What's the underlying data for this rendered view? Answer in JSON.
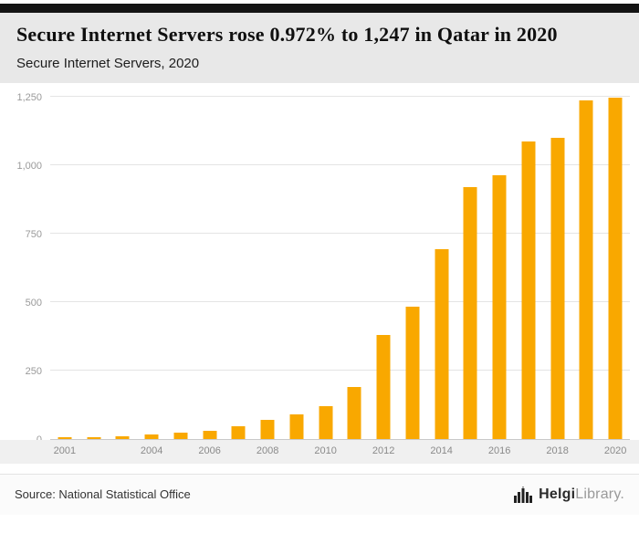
{
  "header": {
    "title": "Secure Internet Servers rose 0.972% to 1,247 in Qatar in 2020",
    "subtitle": "Secure Internet Servers, 2020"
  },
  "footer": {
    "source": "Source: National Statistical Office",
    "logo": {
      "brand_bold": "Helgi",
      "brand_light": "Library."
    }
  },
  "chart_data": {
    "type": "bar",
    "title": "Secure Internet Servers, 2020",
    "categories": [
      2001,
      2002,
      2003,
      2004,
      2005,
      2006,
      2007,
      2008,
      2009,
      2010,
      2011,
      2012,
      2013,
      2014,
      2015,
      2016,
      2017,
      2018,
      2019,
      2020
    ],
    "values": [
      3,
      6,
      10,
      15,
      22,
      30,
      45,
      68,
      90,
      118,
      190,
      380,
      483,
      692,
      920,
      963,
      1085,
      1100,
      1235,
      1247
    ],
    "bar_color": "#F9A800",
    "xlabel": "",
    "ylabel": "",
    "ylim": [
      0,
      1250
    ],
    "grid": true,
    "legend": false,
    "yticks": [
      {
        "value": 0,
        "label": "0"
      },
      {
        "value": 250,
        "label": "250"
      },
      {
        "value": 500,
        "label": "500"
      },
      {
        "value": 750,
        "label": "750"
      },
      {
        "value": 1000,
        "label": "1,000"
      },
      {
        "value": 1250,
        "label": "1,250"
      }
    ],
    "xtick_years": [
      "2001",
      "2004",
      "2006",
      "2008",
      "2010",
      "2012",
      "2014",
      "2016",
      "2018",
      "2020"
    ]
  }
}
